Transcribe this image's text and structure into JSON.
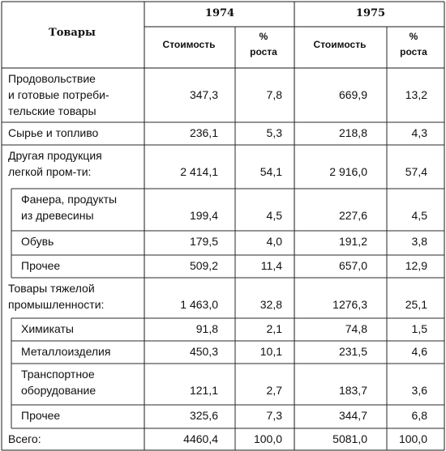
{
  "header": {
    "goods": "Товары",
    "year1": "1974",
    "year2": "1975",
    "cost1": "Стоимость",
    "pct1_a": "%",
    "pct1_b": "роста",
    "cost2": "Стоимость",
    "pct2_a": "%",
    "pct2_b": "роста"
  },
  "rows": [
    {
      "label": [
        "Продовольствие",
        "и готовые потреби-",
        "тельские товары"
      ],
      "v": [
        "347,3",
        "7,8",
        "669,9",
        "13,2"
      ]
    },
    {
      "label": [
        "Сырье и топливо"
      ],
      "v": [
        "236,1",
        "5,3",
        "218,8",
        "4,3"
      ]
    },
    {
      "label": [
        "Другая продукция",
        "легкой пром-ти:"
      ],
      "v": [
        "2 414,1",
        "54,1",
        "2 916,0",
        "57,4"
      ]
    },
    {
      "label": [
        "Фанера, продукты",
        "из древесины"
      ],
      "v": [
        "199,4",
        "4,5",
        "227,6",
        "4,5"
      ]
    },
    {
      "label": [
        "Обувь"
      ],
      "v": [
        "179,5",
        "4,0",
        "191,2",
        "3,8"
      ]
    },
    {
      "label": [
        "Прочее"
      ],
      "v": [
        "509,2",
        "11,4",
        "657,0",
        "12,9"
      ]
    },
    {
      "label": [
        "Товары тяжелой",
        "промышленности:"
      ],
      "v": [
        "1 463,0",
        "32,8",
        "1276,3",
        "25,1"
      ]
    },
    {
      "label": [
        "Химикаты"
      ],
      "v": [
        "91,8",
        "2,1",
        "74,8",
        "1,5"
      ]
    },
    {
      "label": [
        "Металлоизделия"
      ],
      "v": [
        "450,3",
        "10,1",
        "231,5",
        "4,6"
      ]
    },
    {
      "label": [
        "Транспортное",
        "оборудование"
      ],
      "v": [
        "121,1",
        "2,7",
        "183,7",
        "3,6"
      ]
    },
    {
      "label": [
        "Прочее"
      ],
      "v": [
        "325,6",
        "7,3",
        "344,7",
        "6,8"
      ]
    },
    {
      "label": [
        "Всего:"
      ],
      "v": [
        "4460,4",
        "100,0",
        "5081,0",
        "100,0"
      ]
    }
  ]
}
